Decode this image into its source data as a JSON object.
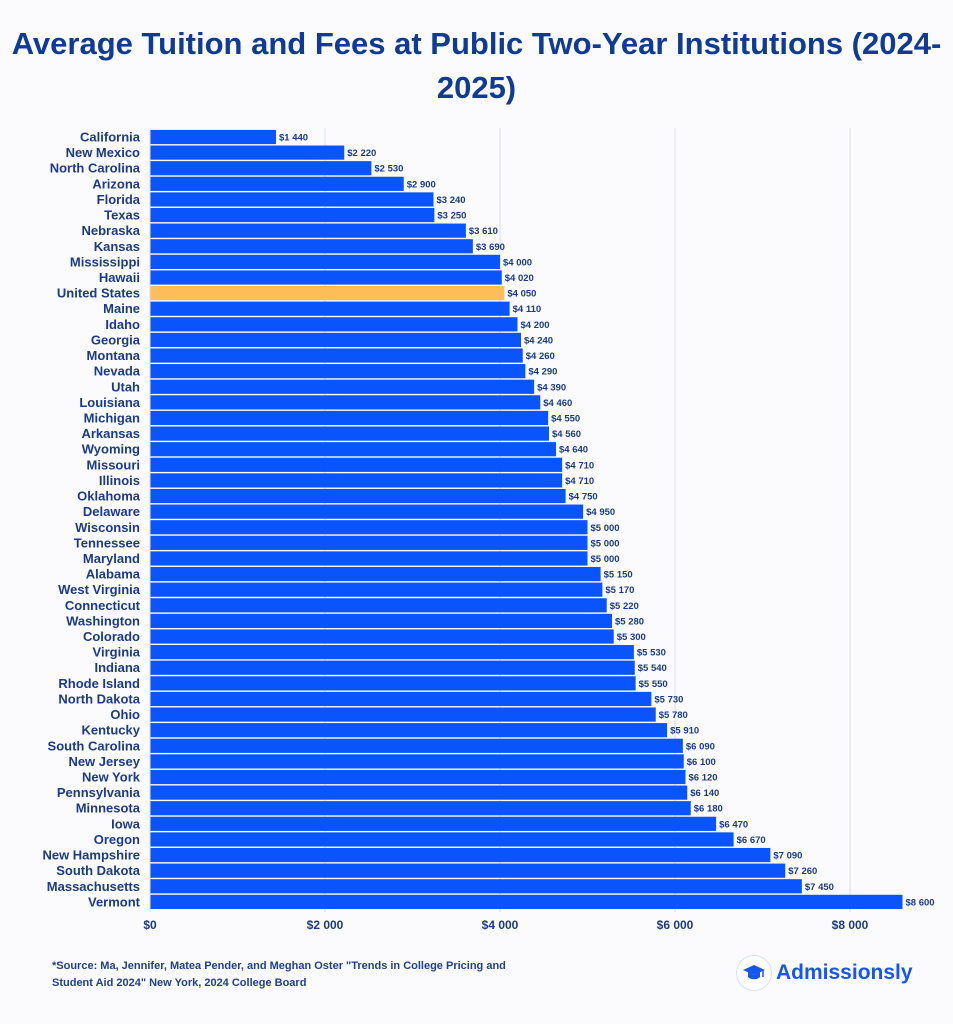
{
  "chart_data": {
    "type": "bar",
    "orientation": "horizontal",
    "title": "Average Tuition and Fees at Public Two-Year Institutions (2024-2025)",
    "categories": [
      "California",
      "New Mexico",
      "North Carolina",
      "Arizona",
      "Florida",
      "Texas",
      "Nebraska",
      "Kansas",
      "Mississippi",
      "Hawaii",
      "United States",
      "Maine",
      "Idaho",
      "Georgia",
      "Montana",
      "Nevada",
      "Utah",
      "Louisiana",
      "Michigan",
      "Arkansas",
      "Wyoming",
      "Missouri",
      "Illinois",
      "Oklahoma",
      "Delaware",
      "Wisconsin",
      "Tennessee",
      "Maryland",
      "Alabama",
      "West Virginia",
      "Connecticut",
      "Washington",
      "Colorado",
      "Virginia",
      "Indiana",
      "Rhode Island",
      "North Dakota",
      "Ohio",
      "Kentucky",
      "South Carolina",
      "New Jersey",
      "New York",
      "Pennsylvania",
      "Minnesota",
      "Iowa",
      "Oregon",
      "New Hampshire",
      "South Dakota",
      "Massachusetts",
      "Vermont"
    ],
    "values": [
      1440,
      2220,
      2530,
      2900,
      3240,
      3250,
      3610,
      3690,
      4000,
      4020,
      4050,
      4110,
      4200,
      4240,
      4260,
      4290,
      4390,
      4460,
      4550,
      4560,
      4640,
      4710,
      4710,
      4750,
      4950,
      5000,
      5000,
      5000,
      5150,
      5170,
      5220,
      5280,
      5300,
      5530,
      5540,
      5550,
      5730,
      5780,
      5910,
      6090,
      6100,
      6120,
      6140,
      6180,
      6470,
      6670,
      7090,
      7260,
      7450,
      8600
    ],
    "data_labels": [
      "$1 440",
      "$2 220",
      "$2 530",
      "$2 900",
      "$3 240",
      "$3 250",
      "$3 610",
      "$3 690",
      "$4 000",
      "$4 020",
      "$4 050",
      "$4 110",
      "$4 200",
      "$4 240",
      "$4 260",
      "$4 290",
      "$4 390",
      "$4 460",
      "$4 550",
      "$4 560",
      "$4 640",
      "$4 710",
      "$4 710",
      "$4 750",
      "$4 950",
      "$5 000",
      "$5 000",
      "$5 000",
      "$5 150",
      "$5 170",
      "$5 220",
      "$5 280",
      "$5 300",
      "$5 530",
      "$5 540",
      "$5 550",
      "$5 730",
      "$5 780",
      "$5 910",
      "$6 090",
      "$6 100",
      "$6 120",
      "$6 140",
      "$6 180",
      "$6 470",
      "$6 670",
      "$7 090",
      "$7 260",
      "$7 450",
      "$8 600"
    ],
    "highlight": "United States",
    "xlim": [
      0,
      8600
    ],
    "xticks": [
      0,
      2000,
      4000,
      6000,
      8000
    ],
    "xtick_labels": [
      "$0",
      "$2 000",
      "$4 000",
      "$6 000",
      "$8 000"
    ],
    "grid": "vertical",
    "colors": {
      "bar": "#0a55fb",
      "highlight": "#ffbd59",
      "label": "#1a3a8a",
      "grid": "#d8dcea"
    }
  },
  "source": "*Source: Ma, Jennifer, Matea Pender, and Meghan Oster \"Trends in College Pricing and Student Aid 2024\" New York, 2024 College Board",
  "brand": {
    "name": "Admissionsly",
    "icon": "graduation-cap-icon"
  }
}
